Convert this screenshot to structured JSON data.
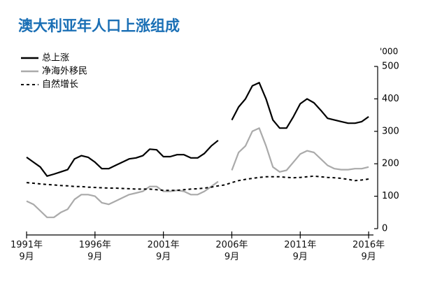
{
  "chart_data": {
    "type": "line",
    "title": "澳大利亚年人口上涨组成",
    "y_unit": "'000",
    "x": [
      1991.75,
      1992.25,
      1992.75,
      1993.25,
      1993.75,
      1994.25,
      1994.75,
      1995.25,
      1995.75,
      1996.25,
      1996.75,
      1997.25,
      1997.75,
      1998.25,
      1998.75,
      1999.25,
      1999.75,
      2000.25,
      2000.75,
      2001.25,
      2001.75,
      2002.25,
      2002.75,
      2003.25,
      2003.75,
      2004.25,
      2004.75,
      2005.25,
      2005.75,
      2006.25,
      2006.75,
      2007.25,
      2007.75,
      2008.25,
      2008.75,
      2009.25,
      2009.75,
      2010.25,
      2010.75,
      2011.25,
      2011.75,
      2012.25,
      2012.75,
      2013.25,
      2013.75,
      2014.25,
      2014.75,
      2015.25,
      2015.75,
      2016.25,
      2016.75
    ],
    "series": [
      {
        "name": "总上涨",
        "color": "#000000",
        "dash": false,
        "values": [
          220,
          205,
          190,
          162,
          168,
          175,
          182,
          215,
          225,
          220,
          205,
          185,
          185,
          195,
          205,
          215,
          218,
          225,
          245,
          243,
          222,
          222,
          228,
          228,
          218,
          218,
          232,
          255,
          272,
          null,
          335,
          375,
          400,
          440,
          450,
          400,
          335,
          310,
          310,
          345,
          385,
          400,
          388,
          365,
          340,
          335,
          330,
          325,
          325,
          330,
          345
        ]
      },
      {
        "name": "净海外移民",
        "color": "#aaaaaa",
        "dash": false,
        "values": [
          85,
          75,
          55,
          35,
          35,
          50,
          60,
          90,
          105,
          105,
          100,
          80,
          75,
          85,
          95,
          105,
          110,
          115,
          130,
          130,
          115,
          115,
          118,
          115,
          105,
          105,
          115,
          130,
          145,
          null,
          180,
          235,
          255,
          300,
          310,
          255,
          190,
          175,
          180,
          205,
          230,
          240,
          235,
          215,
          195,
          185,
          182,
          182,
          185,
          185,
          190
        ]
      },
      {
        "name": "自然增长",
        "color": "#000000",
        "dash": true,
        "values": [
          142,
          140,
          138,
          136,
          135,
          133,
          132,
          130,
          130,
          128,
          127,
          126,
          125,
          125,
          124,
          123,
          122,
          122,
          122,
          120,
          118,
          118,
          118,
          120,
          122,
          123,
          125,
          128,
          132,
          135,
          142,
          148,
          152,
          155,
          158,
          160,
          160,
          160,
          158,
          157,
          158,
          160,
          162,
          160,
          158,
          157,
          155,
          152,
          148,
          150,
          153
        ]
      }
    ],
    "xlim": [
      1991.75,
      2017
    ],
    "xticks": [
      {
        "value": 1991.75,
        "label": "1991年\n9月"
      },
      {
        "value": 1996.75,
        "label": "1996年\n9月"
      },
      {
        "value": 2001.75,
        "label": "2001年\n9月"
      },
      {
        "value": 2006.75,
        "label": "2006年\n9月"
      },
      {
        "value": 2011.75,
        "label": "2011年\n9月"
      },
      {
        "value": 2016.75,
        "label": "2016年\n9月"
      }
    ],
    "ylim": [
      0,
      500
    ],
    "yticks": [
      0,
      100,
      200,
      300,
      400,
      500
    ],
    "legend": "top-left"
  }
}
